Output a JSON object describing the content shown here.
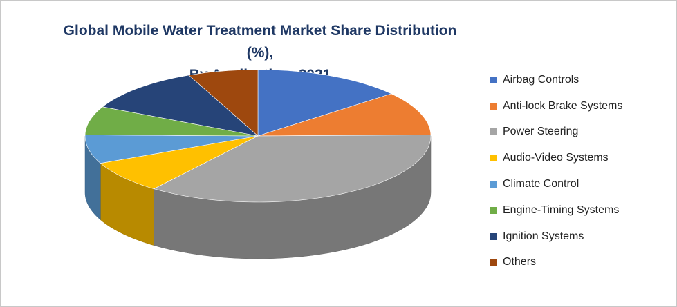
{
  "chart_data": {
    "type": "pie",
    "title": [
      "Global Mobile Water Treatment Market Share Distribution (%),",
      "By Application, 2021"
    ],
    "categories": [
      "Airbag Controls",
      "Anti-lock Brake Systems",
      "Power Steering",
      "Audio-Video Systems",
      "Climate Control",
      "Engine-Timing Systems",
      "Ignition Systems",
      "Others"
    ],
    "values": [
      15.0,
      11.5,
      38.0,
      8.5,
      7.5,
      7.5,
      12.0,
      7.0
    ],
    "colors": [
      "#4472c4",
      "#ed7d31",
      "#a5a5a5",
      "#ffc000",
      "#5b9bd5",
      "#70ad47",
      "#264478",
      "#9e480e"
    ],
    "legend_position": "right",
    "style": "3d"
  }
}
